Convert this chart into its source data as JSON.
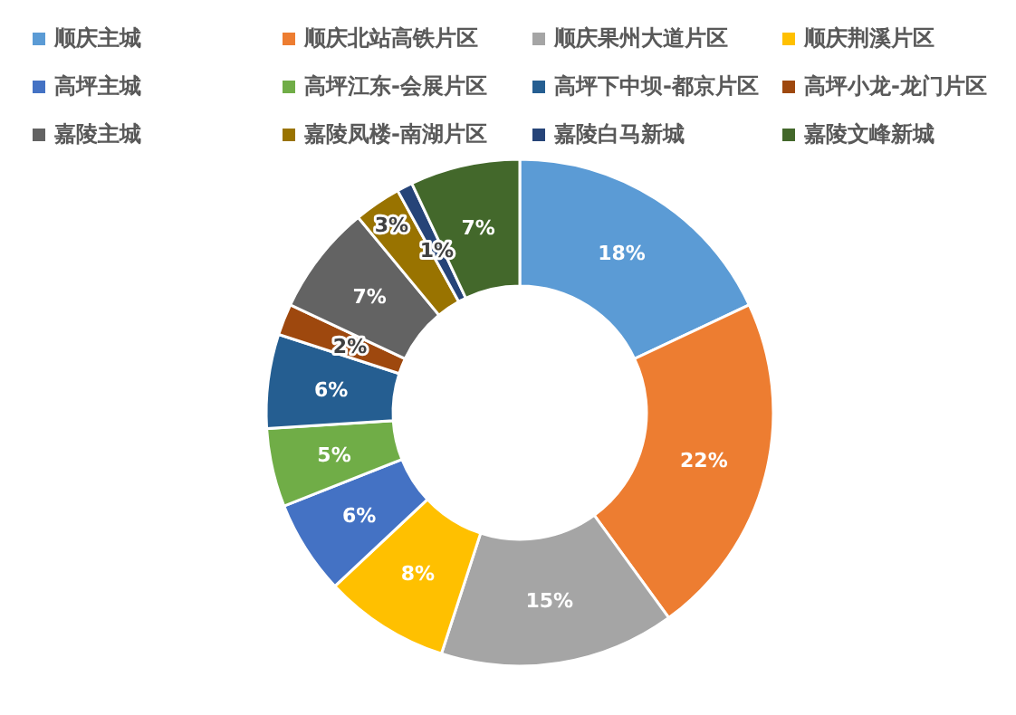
{
  "chart_data": {
    "type": "donut",
    "categories": [
      "顺庆主城",
      "顺庆北站高铁片区",
      "顺庆果州大道片区",
      "顺庆荆溪片区",
      "高坪主城",
      "高坪江东-会展片区",
      "高坪下中坝-都京片区",
      "高坪小龙-龙门片区",
      "嘉陵主城",
      "嘉陵凤楼-南湖片区",
      "嘉陵白马新城",
      "嘉陵文峰新城"
    ],
    "values": [
      18,
      22,
      15,
      8,
      6,
      5,
      6,
      2,
      7,
      3,
      1,
      7
    ],
    "colors": [
      "#5b9bd5",
      "#ed7d31",
      "#a5a5a5",
      "#ffc000",
      "#4472c4",
      "#70ad47",
      "#255e91",
      "#9e480e",
      "#636363",
      "#997300",
      "#264478",
      "#43682b"
    ],
    "value_labels": [
      "18%",
      "22%",
      "15%",
      "8%",
      "6%",
      "5%",
      "6%",
      "2%",
      "7%",
      "3%",
      "1%",
      "7%"
    ],
    "legend": "top"
  }
}
